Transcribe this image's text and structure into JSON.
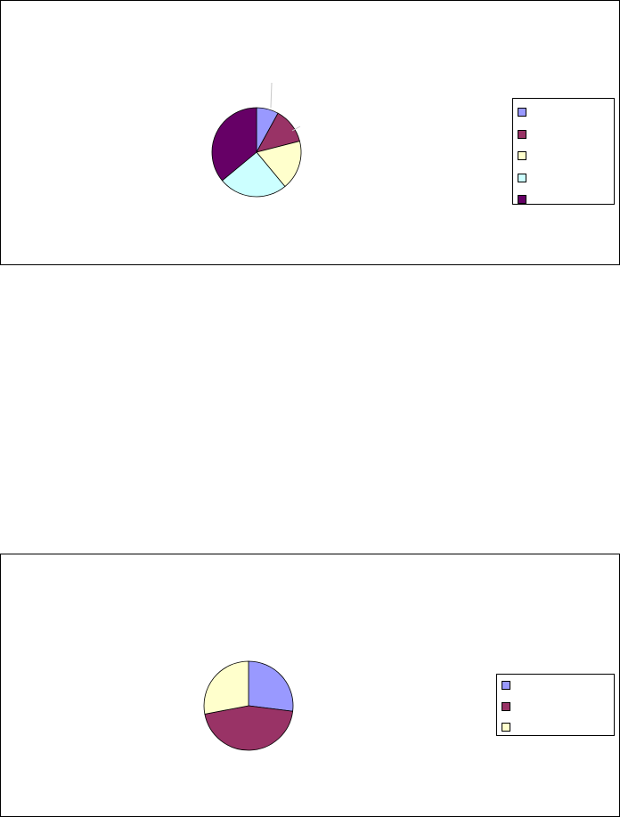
{
  "chart_data": [
    {
      "type": "pie",
      "title": "",
      "categories": [
        "",
        "",
        "",
        "",
        ""
      ],
      "values": [
        8,
        13,
        18,
        25,
        36
      ],
      "colors": [
        "#9999FF",
        "#993366",
        "#FFFFCC",
        "#CCFFFF",
        "#660066"
      ],
      "legend": "right",
      "data_labels": []
    },
    {
      "type": "pie",
      "title": "",
      "categories": [
        "",
        "",
        ""
      ],
      "values": [
        27,
        45,
        28
      ],
      "colors": [
        "#9999FF",
        "#993366",
        "#FFFFCC"
      ],
      "legend": "right",
      "data_labels": []
    }
  ]
}
